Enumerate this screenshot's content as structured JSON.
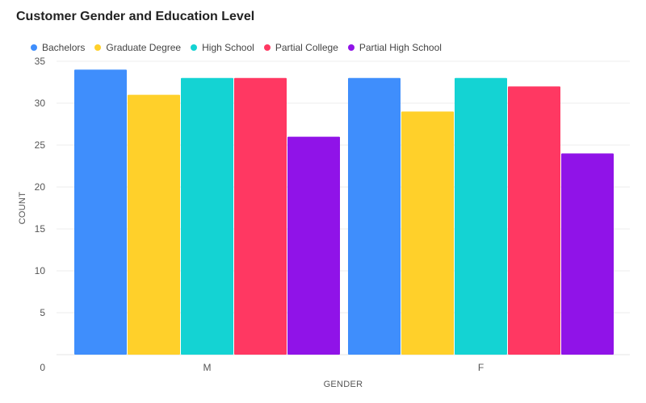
{
  "chart_data": {
    "type": "bar",
    "title": "Customer Gender and Education Level",
    "xlabel": "GENDER",
    "ylabel": "COUNT",
    "categories": [
      "M",
      "F"
    ],
    "series": [
      {
        "name": "Bachelors",
        "values": [
          34,
          33
        ],
        "color": "#3f8efc"
      },
      {
        "name": "Graduate Degree",
        "values": [
          31,
          29
        ],
        "color": "#ffd02a"
      },
      {
        "name": "High School",
        "values": [
          33,
          33
        ],
        "color": "#14d3d3"
      },
      {
        "name": "Partial College",
        "values": [
          33,
          32
        ],
        "color": "#ff3862"
      },
      {
        "name": "Partial High School",
        "values": [
          26,
          24
        ],
        "color": "#9013e8"
      }
    ],
    "ylim": [
      0,
      35
    ],
    "yticks": [
      0,
      5,
      10,
      15,
      20,
      25,
      30,
      35
    ],
    "grid": true,
    "legend_position": "top-left"
  }
}
